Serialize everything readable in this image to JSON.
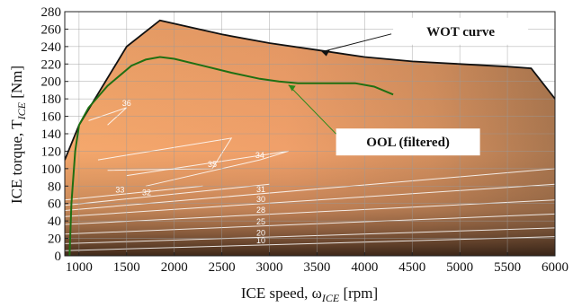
{
  "chart_data": {
    "type": "line",
    "xlabel": {
      "main": "ICE speed,  ω",
      "sub": "ICE",
      "unit": "  [rpm]"
    },
    "ylabel": {
      "main": "ICE torque,  T",
      "sub": "ICE",
      "unit": "  [Nm]"
    },
    "xlim": [
      850,
      6000
    ],
    "ylim": [
      0,
      280
    ],
    "xticks": [
      1000,
      1500,
      2000,
      2500,
      3000,
      3500,
      4000,
      4500,
      5000,
      5500,
      6000
    ],
    "yticks": [
      0,
      20,
      40,
      60,
      80,
      100,
      120,
      140,
      160,
      180,
      200,
      220,
      240,
      260,
      280
    ],
    "grid": true,
    "background": "efficiency map (colored contours)",
    "colors": {
      "wot": "#111111",
      "ool": "#1f6f12",
      "contour": "#ffffff",
      "annotation_box": "#ffffff",
      "annotation_arrow_ool": "#2a8a1a"
    },
    "series": [
      {
        "name": "WOT curve",
        "x": [
          850,
          1000,
          1500,
          1850,
          2500,
          3000,
          3500,
          4000,
          4500,
          5000,
          5500,
          5750,
          6000
        ],
        "y": [
          110,
          150,
          240,
          270,
          254,
          244,
          236,
          228,
          223,
          220,
          217,
          215,
          180
        ]
      },
      {
        "name": "OOL (filtered)",
        "x": [
          900,
          920,
          960,
          1000,
          1100,
          1300,
          1550,
          1700,
          1850,
          2000,
          2300,
          2600,
          2900,
          3100,
          3300,
          3600,
          3900,
          4100,
          4300
        ],
        "y": [
          0,
          60,
          120,
          150,
          170,
          195,
          218,
          225,
          228,
          226,
          218,
          210,
          203,
          200,
          198,
          198,
          198,
          194,
          185
        ]
      }
    ],
    "contours": [
      {
        "label": "10",
        "x": [
          850,
          6000
        ],
        "y": [
          6,
          22
        ]
      },
      {
        "label": "20",
        "x": [
          850,
          6000
        ],
        "y": [
          14,
          32
        ]
      },
      {
        "label": "25",
        "x": [
          850,
          6000
        ],
        "y": [
          25,
          48
        ]
      },
      {
        "label": "28",
        "x": [
          850,
          6000
        ],
        "y": [
          36,
          64
        ]
      },
      {
        "label": "30",
        "x": [
          850,
          6000
        ],
        "y": [
          45,
          82
        ]
      },
      {
        "label": "31",
        "x": [
          850,
          6000
        ],
        "y": [
          52,
          100
        ]
      },
      {
        "label": "32",
        "x": [
          850,
          3000
        ],
        "y": [
          58,
          82
        ]
      },
      {
        "label": "33",
        "x": [
          850,
          2300
        ],
        "y": [
          64,
          80
        ]
      },
      {
        "label": "34",
        "x": [
          1500,
          3200,
          2900,
          1700
        ],
        "y": [
          92,
          120,
          110,
          80
        ]
      },
      {
        "label": "35",
        "x": [
          1200,
          2600,
          2400,
          1300
        ],
        "y": [
          110,
          135,
          100,
          98
        ]
      },
      {
        "label": "36",
        "x": [
          1100,
          1500,
          1300
        ],
        "y": [
          155,
          170,
          150
        ]
      }
    ],
    "annotations": [
      {
        "text": "WOT curve"
      },
      {
        "text": "OOL (filtered)"
      }
    ]
  }
}
